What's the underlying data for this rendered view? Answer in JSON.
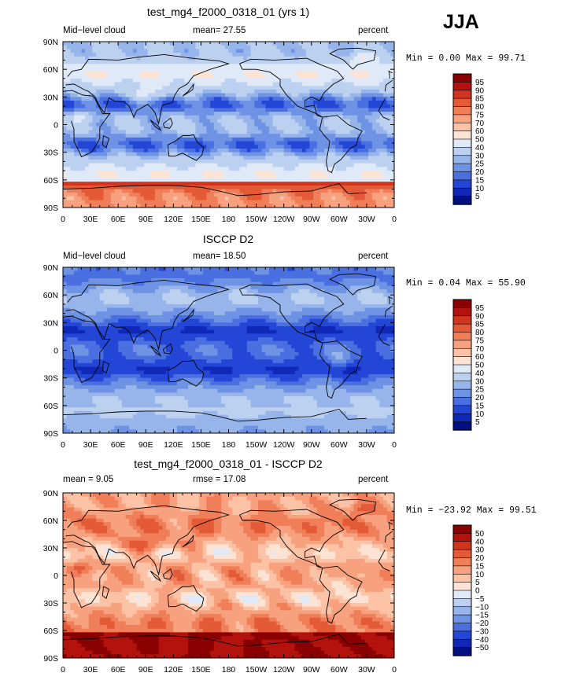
{
  "season": "JJA",
  "panels": [
    {
      "title": "test_mg4_f2000_0318_01 (yrs 1)",
      "left_label": "Mid−level cloud",
      "center_label": "mean=  27.55",
      "units": "percent",
      "min_max": "Min =   0.00 Max =  99.71",
      "colorbar": {
        "labels": [
          "95",
          "90",
          "85",
          "80",
          "75",
          "70",
          "60",
          "50",
          "40",
          "30",
          "25",
          "20",
          "15",
          "10",
          "5"
        ],
        "colors": [
          "#8b0000",
          "#b3130c",
          "#d1351f",
          "#e45a36",
          "#f07e58",
          "#f7a17f",
          "#fbc2a6",
          "#fde3d4",
          "#dfe9f7",
          "#bcd1f0",
          "#97b5ea",
          "#6f93e4",
          "#4a6fe0",
          "#2346d6",
          "#1028b8",
          "#001081"
        ]
      }
    },
    {
      "title": "ISCCP D2",
      "left_label": "Mid−level cloud",
      "center_label": "mean=  18.50",
      "units": "percent",
      "min_max": "Min =   0.04 Max =  55.90",
      "colorbar": {
        "labels": [
          "95",
          "90",
          "85",
          "80",
          "75",
          "70",
          "60",
          "50",
          "40",
          "30",
          "25",
          "20",
          "15",
          "10",
          "5"
        ],
        "colors": [
          "#8b0000",
          "#b3130c",
          "#d1351f",
          "#e45a36",
          "#f07e58",
          "#f7a17f",
          "#fbc2a6",
          "#fde3d4",
          "#dfe9f7",
          "#bcd1f0",
          "#97b5ea",
          "#6f93e4",
          "#4a6fe0",
          "#2346d6",
          "#1028b8",
          "#001081"
        ]
      }
    },
    {
      "title": "test_mg4_f2000_0318_01 - ISCCP D2",
      "left_label": "mean =   9.05",
      "center_label": "rmse =  17.08",
      "units": "percent",
      "min_max": "Min = −23.92 Max =  99.51",
      "colorbar": {
        "labels": [
          "50",
          "40",
          "30",
          "20",
          "15",
          "10",
          "5",
          "0",
          "−5",
          "−10",
          "−15",
          "−20",
          "−30",
          "−40",
          "−50"
        ],
        "colors": [
          "#8b0000",
          "#b3130c",
          "#d1351f",
          "#e45a36",
          "#f07e58",
          "#f7a17f",
          "#fbc2a6",
          "#fde3d4",
          "#dfe9f7",
          "#bcd1f0",
          "#97b5ea",
          "#6f93e4",
          "#4a6fe0",
          "#2346d6",
          "#1028b8",
          "#001081"
        ]
      }
    }
  ],
  "axes": {
    "lat_labels": [
      "90N",
      "60N",
      "30N",
      "0",
      "30S",
      "60S",
      "90S"
    ],
    "lon_labels": [
      "0",
      "30E",
      "60E",
      "90E",
      "120E",
      "150E",
      "180",
      "150W",
      "120W",
      "90W",
      "60W",
      "30W",
      "0"
    ]
  }
}
